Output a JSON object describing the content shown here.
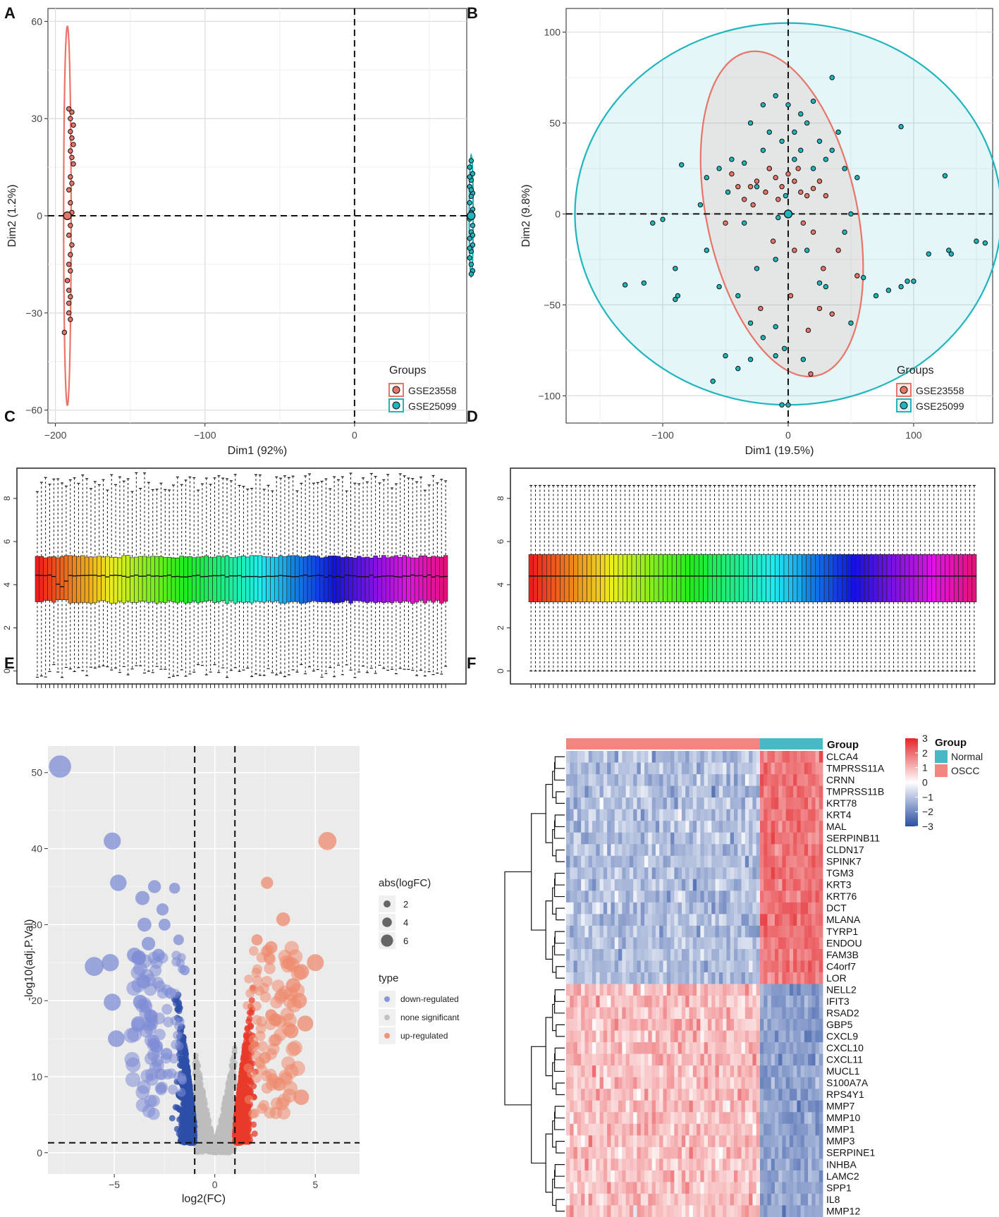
{
  "panels": {
    "A": {
      "letter": "A"
    },
    "B": {
      "letter": "B"
    },
    "C": {
      "letter": "C"
    },
    "D": {
      "letter": "D"
    },
    "E": {
      "letter": "E"
    },
    "F": {
      "letter": "F"
    }
  },
  "colors": {
    "gse23558": "#E8756A",
    "gse25099": "#1FB5BD",
    "down": "#2E4FA8",
    "down_light": "#7D8CD6",
    "none": "#BDBDBD",
    "up": "#E8392A",
    "up_light": "#EE8A6D",
    "heat_high": "#E3262B",
    "heat_mid": "#FFFFFF",
    "heat_low": "#2B4FA2",
    "normal": "#47B9C6",
    "oscc": "#F0867F"
  },
  "chart_data": [
    {
      "panel": "A",
      "type": "scatter",
      "title": "",
      "xlabel": "Dim1 (92%)",
      "ylabel": "Dim2 (1.2%)",
      "xlim": [
        -205,
        75
      ],
      "ylim": [
        -64,
        64
      ],
      "xticks": [
        -200,
        -100,
        0
      ],
      "yticks": [
        -60,
        -30,
        0,
        30,
        60
      ],
      "legend_title": "Groups",
      "legend_position": "bottom-right",
      "series": [
        {
          "name": "GSE23558",
          "color": "#E8756A",
          "centroid": [
            -192,
            0
          ],
          "ellipse": {
            "cx": -192,
            "cy": 0,
            "rx": 2.5,
            "ry": 58.5
          },
          "points": [
            [
              -191,
              33
            ],
            [
              -189,
              32
            ],
            [
              -190,
              30
            ],
            [
              -188,
              28
            ],
            [
              -190,
              26
            ],
            [
              -189,
              24
            ],
            [
              -188,
              22
            ],
            [
              -190,
              20
            ],
            [
              -189,
              18
            ],
            [
              -188,
              16
            ],
            [
              -190,
              12
            ],
            [
              -189,
              10
            ],
            [
              -191,
              8
            ],
            [
              -190,
              4
            ],
            [
              -189,
              1
            ],
            [
              -190,
              -3
            ],
            [
              -191,
              -6
            ],
            [
              -189,
              -9
            ],
            [
              -190,
              -12
            ],
            [
              -191,
              -15
            ],
            [
              -190,
              -17
            ],
            [
              -192,
              -20
            ],
            [
              -191,
              -23
            ],
            [
              -190,
              -25
            ],
            [
              -191,
              -27
            ],
            [
              -191,
              -30
            ],
            [
              -190,
              -32
            ],
            [
              -194,
              -36
            ]
          ]
        },
        {
          "name": "GSE25099",
          "color": "#1FB5BD",
          "centroid": [
            78,
            0
          ],
          "ellipse": {
            "cx": 78,
            "cy": 0,
            "rx": 1.3,
            "ry": 19
          },
          "points": [
            [
              78,
              17
            ],
            [
              77,
              15
            ],
            [
              79,
              13
            ],
            [
              78,
              11
            ],
            [
              77,
              9
            ],
            [
              79,
              7
            ],
            [
              78,
              6
            ],
            [
              77,
              4
            ],
            [
              79,
              2
            ],
            [
              78,
              1
            ],
            [
              77,
              -1
            ],
            [
              79,
              -3
            ],
            [
              78,
              -5
            ],
            [
              77,
              -7
            ],
            [
              79,
              -9
            ],
            [
              78,
              -11
            ],
            [
              77,
              -13
            ],
            [
              78,
              -15
            ],
            [
              79,
              -17
            ],
            [
              78,
              -18
            ],
            [
              77,
              12
            ],
            [
              79,
              -6
            ],
            [
              78,
              8
            ],
            [
              77,
              -10
            ]
          ]
        }
      ],
      "dashed_lines": {
        "x": 0,
        "y": 0
      }
    },
    {
      "panel": "B",
      "type": "scatter",
      "title": "",
      "xlabel": "Dim1 (19.5%)",
      "ylabel": "Dim2 (9.8%)",
      "xlim": [
        -177,
        163
      ],
      "ylim": [
        -115,
        113
      ],
      "xticks": [
        -100,
        0,
        100
      ],
      "yticks": [
        -100,
        -50,
        0,
        50,
        100
      ],
      "legend_title": "Groups",
      "legend_position": "bottom-right",
      "series": [
        {
          "name": "GSE23558",
          "color": "#E8756A",
          "centroid": [
            0,
            0
          ],
          "ellipse": {
            "cx": -5,
            "cy": 0,
            "rx": 60,
            "ry": 91,
            "angle": -12
          },
          "points": [
            [
              -30,
              15
            ],
            [
              -25,
              18
            ],
            [
              -18,
              12
            ],
            [
              -10,
              20
            ],
            [
              -5,
              15
            ],
            [
              0,
              22
            ],
            [
              5,
              18
            ],
            [
              10,
              12
            ],
            [
              15,
              10
            ],
            [
              20,
              14
            ],
            [
              25,
              18
            ],
            [
              30,
              10
            ],
            [
              -35,
              8
            ],
            [
              -28,
              5
            ],
            [
              -15,
              25
            ],
            [
              8,
              25
            ],
            [
              12,
              -5
            ],
            [
              -22,
              -52
            ],
            [
              16,
              -64
            ],
            [
              25,
              -52
            ],
            [
              35,
              -55
            ],
            [
              55,
              -34
            ],
            [
              -40,
              15
            ],
            [
              -8,
              8
            ],
            [
              20,
              -10
            ],
            [
              -12,
              -15
            ],
            [
              5,
              -20
            ],
            [
              -45,
              22
            ],
            [
              28,
              -30
            ],
            [
              40,
              -20
            ],
            [
              -50,
              -5
            ],
            [
              2,
              -45
            ],
            [
              18,
              -88
            ]
          ]
        },
        {
          "name": "GSE25099",
          "color": "#1FB5BD",
          "centroid": [
            0,
            0
          ],
          "ellipse": {
            "cx": 0,
            "cy": 0,
            "rx": 170,
            "ry": 105
          },
          "points": [
            [
              -130,
              -39
            ],
            [
              -115,
              -38
            ],
            [
              -108,
              -5
            ],
            [
              -90,
              -47
            ],
            [
              -88,
              -45
            ],
            [
              -85,
              27
            ],
            [
              -90,
              -30
            ],
            [
              -100,
              -3
            ],
            [
              -60,
              -92
            ],
            [
              -50,
              -78
            ],
            [
              -40,
              -85
            ],
            [
              -30,
              -80
            ],
            [
              -20,
              -68
            ],
            [
              -10,
              -62
            ],
            [
              0,
              -105
            ],
            [
              -5,
              -105
            ],
            [
              30,
              -40
            ],
            [
              50,
              -60
            ],
            [
              60,
              -35
            ],
            [
              70,
              -45
            ],
            [
              80,
              -42
            ],
            [
              90,
              -40
            ],
            [
              95,
              -37
            ],
            [
              100,
              -37
            ],
            [
              112,
              -22
            ],
            [
              128,
              -20
            ],
            [
              130,
              -22
            ],
            [
              150,
              -15
            ],
            [
              157,
              -16
            ],
            [
              90,
              48
            ],
            [
              125,
              21
            ],
            [
              -35,
              -5
            ],
            [
              -25,
              15
            ],
            [
              -15,
              25
            ],
            [
              -5,
              40
            ],
            [
              5,
              45
            ],
            [
              15,
              50
            ],
            [
              25,
              40
            ],
            [
              35,
              35
            ],
            [
              45,
              25
            ],
            [
              55,
              20
            ],
            [
              -45,
              30
            ],
            [
              -55,
              25
            ],
            [
              -65,
              20
            ],
            [
              -70,
              5
            ],
            [
              -20,
              60
            ],
            [
              -10,
              65
            ],
            [
              0,
              60
            ],
            [
              10,
              55
            ],
            [
              20,
              62
            ],
            [
              35,
              75
            ],
            [
              40,
              45
            ],
            [
              -30,
              50
            ],
            [
              -15,
              45
            ],
            [
              5,
              30
            ],
            [
              -2,
              10
            ],
            [
              -8,
              -2
            ],
            [
              15,
              -20
            ],
            [
              25,
              -38
            ],
            [
              -40,
              -45
            ],
            [
              -55,
              -40
            ],
            [
              -65,
              -20
            ],
            [
              10,
              35
            ],
            [
              20,
              25
            ],
            [
              30,
              30
            ],
            [
              -20,
              35
            ],
            [
              -35,
              28
            ],
            [
              -48,
              12
            ],
            [
              50,
              0
            ],
            [
              45,
              -10
            ],
            [
              -10,
              -25
            ],
            [
              -25,
              -30
            ],
            [
              -30,
              -60
            ],
            [
              -10,
              -78
            ],
            [
              12,
              -80
            ],
            [
              -3,
              -74
            ]
          ]
        }
      ],
      "dashed_lines": {
        "x": 0,
        "y": 0
      }
    },
    {
      "panel": "C",
      "type": "box",
      "title": "",
      "n_samples": 100,
      "ylim": [
        -0.6,
        9.4
      ],
      "yticks": [
        0,
        2,
        4,
        6,
        8
      ],
      "stats": {
        "whisker_low_min": -0.3,
        "whisker_low_max": 0.3,
        "q1": 3.2,
        "median": 4.4,
        "q3": 5.3,
        "whisker_high_min": 8.3,
        "whisker_high_max": 9.2
      }
    },
    {
      "panel": "D",
      "type": "box",
      "title": "",
      "n_samples": 100,
      "ylim": [
        -0.6,
        9.4
      ],
      "yticks": [
        0,
        2,
        4,
        6,
        8
      ],
      "stats": {
        "whisker_low": 0.0,
        "q1": 3.2,
        "median": 4.4,
        "q3": 5.4,
        "whisker_high": 8.6
      }
    },
    {
      "panel": "E",
      "type": "scatter",
      "subtype": "volcano",
      "title": "",
      "xlabel": "log2(FC)",
      "ylabel": "-log10(adj.P.Val)",
      "xlim": [
        -8.3,
        7.2
      ],
      "ylim": [
        -2.8,
        53.5
      ],
      "xticks": [
        -5,
        0,
        5
      ],
      "yticks": [
        0,
        10,
        20,
        30,
        40,
        50
      ],
      "vlines": [
        -1,
        1
      ],
      "hline": 1.3,
      "size_legend": {
        "title": "abs(logFC)",
        "values": [
          "2",
          "4",
          "6"
        ]
      },
      "type_legend": {
        "title": "type",
        "entries": [
          "down-regulated",
          "none significant",
          "up-regulated"
        ]
      },
      "highlight_points": [
        [
          -7.7,
          50.8
        ],
        [
          -5.1,
          41
        ],
        [
          -4.8,
          35.5
        ],
        [
          -3.6,
          33.5
        ],
        [
          -3.0,
          35
        ],
        [
          -2.0,
          34.8
        ],
        [
          -2.6,
          32
        ],
        [
          -3.5,
          30
        ],
        [
          -2.5,
          30
        ],
        [
          -1.8,
          28
        ],
        [
          -2.8,
          26
        ],
        [
          -4.0,
          26
        ],
        [
          -3.3,
          27.5
        ],
        [
          -5.2,
          25
        ],
        [
          -1.5,
          24
        ],
        [
          -6.0,
          24.5
        ],
        [
          -5.1,
          19.8
        ],
        [
          -4.9,
          15
        ],
        [
          -3.8,
          17
        ],
        [
          -2.9,
          14
        ],
        [
          -2.4,
          13
        ],
        [
          -3.2,
          18
        ],
        [
          -2.2,
          21
        ],
        [
          5.6,
          41
        ],
        [
          2.6,
          35.5
        ],
        [
          3.4,
          30.7
        ],
        [
          5.0,
          25
        ],
        [
          4.3,
          23.8
        ],
        [
          4.2,
          20
        ],
        [
          4.5,
          17
        ],
        [
          3.8,
          16
        ],
        [
          3.0,
          17.5
        ],
        [
          2.5,
          12.5
        ],
        [
          3.2,
          9
        ],
        [
          4.3,
          7.3
        ],
        [
          2.1,
          28
        ],
        [
          2.8,
          27
        ],
        [
          3.9,
          22
        ]
      ]
    },
    {
      "panel": "F",
      "type": "heatmap",
      "title": "",
      "annotation_label": "Group",
      "legend_title": "Group",
      "groups": [
        "Normal",
        "OSCC"
      ],
      "n_oscc": 52,
      "n_normal": 17,
      "color_scale": {
        "ticks": [
          "3",
          "2",
          "1",
          "0",
          "−1",
          "−2",
          "−3"
        ],
        "min": -3,
        "max": 3
      },
      "genes_up_in_normal": [
        "CLCA4",
        "TMPRSS11A",
        "CRNN",
        "TMPRSS11B",
        "KRT78",
        "KRT4",
        "MAL",
        "SERPINB11",
        "CLDN17",
        "SPINK7",
        "TGM3",
        "KRT3",
        "KRT76",
        "DCT",
        "MLANA",
        "TYRP1",
        "ENDOU",
        "FAM3B",
        "C4orf7",
        "LOR"
      ],
      "genes_up_in_oscc": [
        "NELL2",
        "IFIT3",
        "RSAD2",
        "GBP5",
        "CXCL9",
        "CXCL10",
        "CXCL11",
        "MUCL1",
        "S100A7A",
        "RPS4Y1",
        "MMP7",
        "MMP10",
        "MMP1",
        "MMP3",
        "SERPINE1",
        "INHBA",
        "LAMC2",
        "SPP1",
        "IL8",
        "MMP12"
      ]
    }
  ]
}
